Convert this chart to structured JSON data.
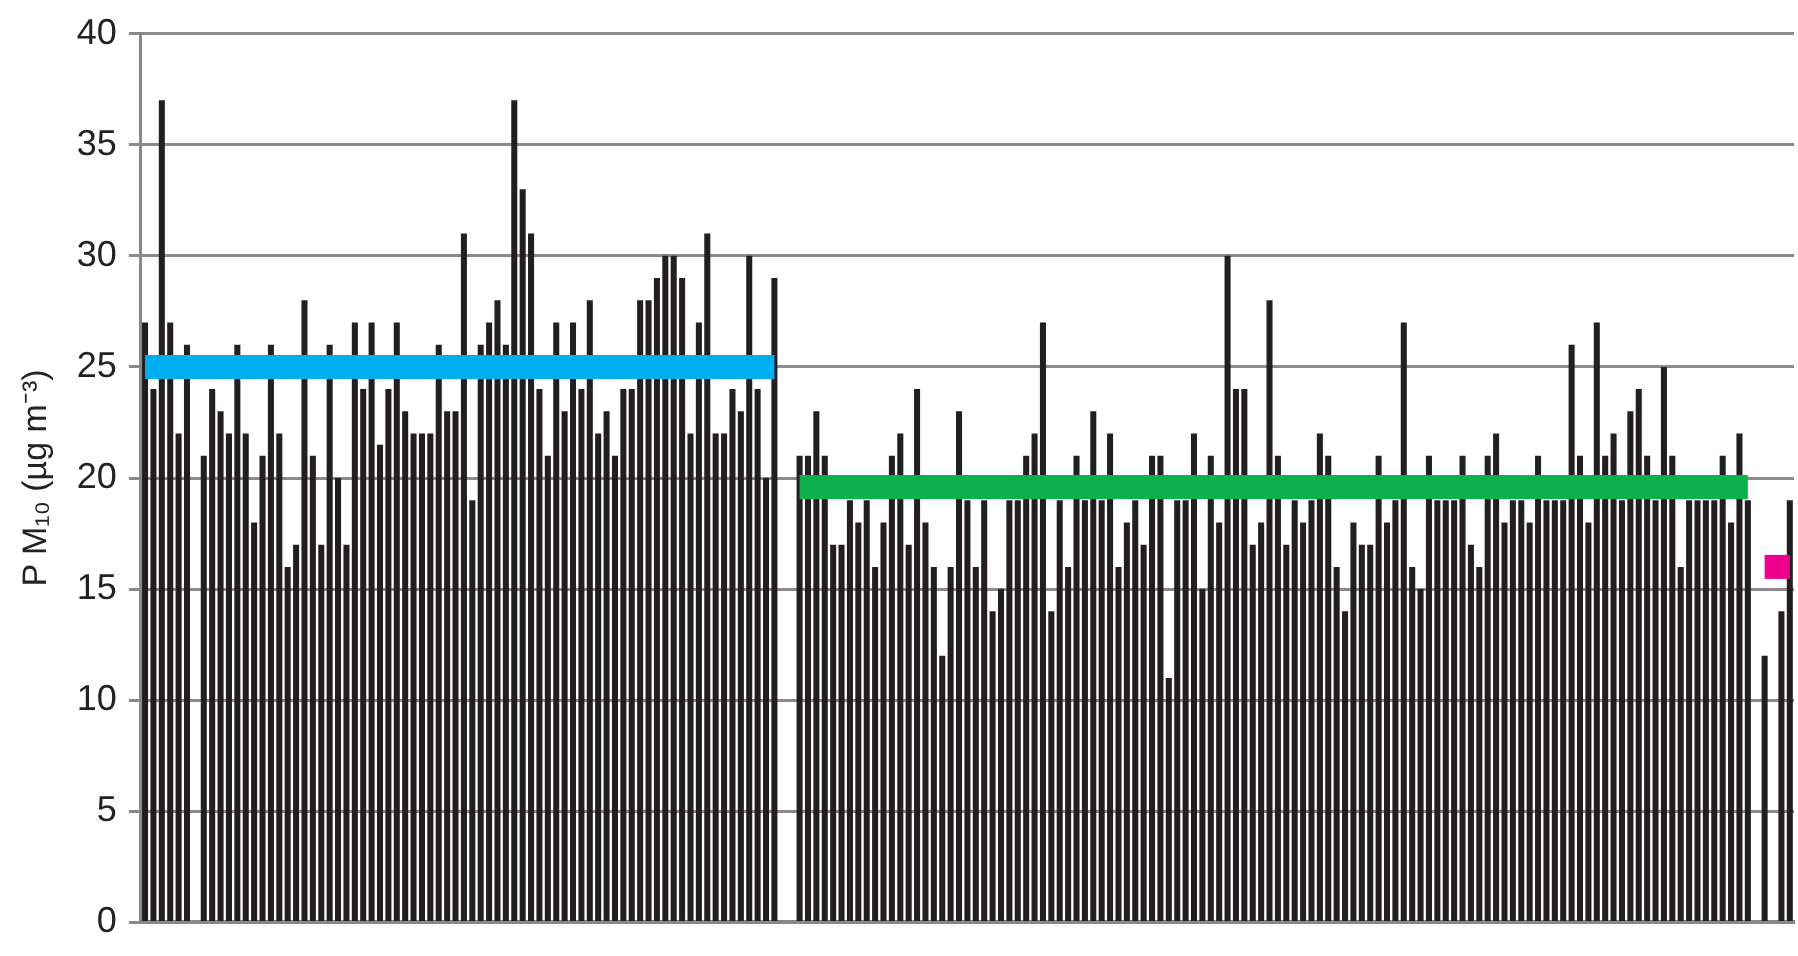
{
  "chart_data": {
    "type": "bar",
    "ylabel": "P M₁₀ (µg m⁻³)",
    "ylim": [
      0,
      40
    ],
    "yticks": [
      0,
      5,
      10,
      15,
      20,
      25,
      30,
      35,
      40
    ],
    "grid": "y",
    "tick_labels": "y",
    "categories": [
      null,
      null,
      null,
      null,
      null,
      null,
      null,
      null,
      null,
      null,
      null,
      null,
      null,
      null,
      null,
      null,
      null,
      null,
      null,
      null,
      null,
      null,
      null,
      null,
      null,
      null,
      null,
      null,
      null,
      null,
      null,
      null,
      null,
      null,
      null,
      null,
      null,
      null,
      null,
      null,
      null,
      null,
      null,
      null,
      null,
      null,
      null,
      null,
      null,
      null,
      null,
      null,
      null,
      null,
      null,
      null,
      null,
      null,
      null,
      null,
      null,
      null,
      null,
      null,
      null,
      null,
      null,
      null,
      null,
      null,
      null,
      null,
      null,
      null,
      null,
      null,
      null,
      null,
      null,
      null,
      null,
      null,
      null,
      null,
      null,
      null,
      null,
      null,
      null,
      null,
      null,
      null,
      null,
      null,
      null,
      null,
      null,
      null,
      null,
      null,
      null,
      null,
      null,
      null,
      null,
      null,
      null,
      null,
      null,
      null,
      null,
      null,
      null,
      null,
      null,
      null,
      null,
      null,
      null,
      null,
      null,
      null,
      null,
      null,
      null,
      null,
      null,
      null,
      null,
      null,
      null,
      null,
      null,
      null,
      null,
      null,
      null,
      null,
      null,
      null,
      null,
      null,
      null,
      null,
      null,
      null,
      null,
      null,
      null,
      null,
      null,
      null,
      null,
      null,
      null,
      null,
      null,
      null,
      null,
      null,
      null,
      null,
      null,
      null,
      null,
      null,
      null,
      null,
      null,
      null,
      null,
      null,
      null,
      null,
      null,
      null,
      null,
      null,
      null,
      null,
      null,
      null,
      null,
      null,
      null,
      null,
      null,
      null,
      null,
      null,
      null,
      null,
      null,
      null,
      null,
      null,
      null
    ],
    "series": [
      {
        "color": "#231f20",
        "values": [
          27,
          24,
          37,
          27,
          22,
          26,
          null,
          21,
          24,
          23,
          22,
          26,
          22,
          18,
          21,
          26,
          22,
          16,
          17,
          28,
          21,
          17,
          26,
          20,
          17,
          27,
          24,
          27,
          21.5,
          24,
          27,
          23,
          22,
          22,
          22,
          26,
          23,
          23,
          31,
          19,
          26,
          27,
          28,
          26,
          37,
          33,
          31,
          24,
          21,
          27,
          23,
          27,
          24,
          28,
          22,
          23,
          21,
          24,
          24,
          28,
          28,
          29,
          30,
          30,
          29,
          22,
          27,
          31,
          22,
          22,
          24,
          23,
          30,
          24,
          20,
          29,
          null,
          null,
          21,
          21,
          23,
          21,
          17,
          17,
          19,
          18,
          19,
          16,
          18,
          21,
          22,
          17,
          24,
          18,
          16,
          12,
          16,
          23,
          19,
          16,
          19,
          14,
          15,
          19,
          19,
          21,
          22,
          27,
          14,
          19,
          16,
          21,
          19,
          23,
          19,
          22,
          16,
          18,
          19,
          17,
          21,
          21,
          11,
          19,
          19,
          22,
          15,
          21,
          18,
          30,
          24,
          24,
          17,
          18,
          28,
          21,
          17,
          19,
          18,
          19,
          22,
          21,
          16,
          14,
          18,
          17,
          17,
          21,
          18,
          19,
          27,
          16,
          15,
          21,
          19,
          19,
          19,
          21,
          17,
          16,
          21,
          22,
          18,
          19,
          19,
          18,
          21,
          19,
          19,
          19,
          26,
          21,
          18,
          27,
          21,
          22,
          19,
          23,
          24,
          21,
          19,
          25,
          21,
          16,
          19,
          19,
          19,
          19,
          21,
          18,
          22,
          19,
          null,
          12,
          null,
          14,
          19
        ]
      },
      {
        "type": "line",
        "color": "#00aeef",
        "values": [
          25,
          25,
          25,
          25,
          25,
          25,
          25,
          25,
          25,
          25,
          25,
          25,
          25,
          25,
          25,
          25,
          25,
          25,
          25,
          25,
          25,
          25,
          25,
          25,
          25,
          25,
          25,
          25,
          25,
          25,
          25,
          25,
          25,
          25,
          25,
          25,
          25,
          25,
          25,
          25,
          25,
          25,
          25,
          25,
          25,
          25,
          25,
          25,
          25,
          25,
          25,
          25,
          25,
          25,
          25,
          25,
          25,
          25,
          25,
          25,
          25,
          25,
          25,
          25,
          25,
          25,
          25,
          25,
          25,
          25,
          25,
          25,
          25,
          25,
          25,
          25,
          null,
          null,
          null,
          null,
          null,
          null,
          null,
          null,
          null,
          null,
          null,
          null,
          null,
          null,
          null,
          null,
          null,
          null,
          null,
          null,
          null,
          null,
          null,
          null,
          null,
          null,
          null,
          null,
          null,
          null,
          null,
          null,
          null,
          null,
          null,
          null,
          null,
          null,
          null,
          null,
          null,
          null,
          null,
          null,
          null,
          null,
          null,
          null,
          null,
          null,
          null,
          null,
          null,
          null,
          null,
          null,
          null,
          null,
          null,
          null,
          null,
          null,
          null,
          null,
          null,
          null,
          null,
          null,
          null,
          null,
          null,
          null,
          null,
          null,
          null,
          null,
          null,
          null,
          null,
          null,
          null,
          null,
          null,
          null,
          null,
          null,
          null,
          null,
          null,
          null,
          null,
          null,
          null,
          null,
          null,
          null,
          null,
          null,
          null,
          null,
          null,
          null,
          null,
          null,
          null,
          null,
          null,
          null,
          null,
          null,
          null,
          null,
          null,
          null,
          null,
          null,
          null,
          null,
          null,
          null,
          null
        ]
      },
      {
        "type": "line",
        "color": "#0db14b",
        "values": [
          null,
          null,
          null,
          null,
          null,
          null,
          null,
          null,
          null,
          null,
          null,
          null,
          null,
          null,
          null,
          null,
          null,
          null,
          null,
          null,
          null,
          null,
          null,
          null,
          null,
          null,
          null,
          null,
          null,
          null,
          null,
          null,
          null,
          null,
          null,
          null,
          null,
          null,
          null,
          null,
          null,
          null,
          null,
          null,
          null,
          null,
          null,
          null,
          null,
          null,
          null,
          null,
          null,
          null,
          null,
          null,
          null,
          null,
          null,
          null,
          null,
          null,
          null,
          null,
          null,
          null,
          null,
          null,
          null,
          null,
          null,
          null,
          null,
          null,
          null,
          null,
          null,
          null,
          19.6,
          19.6,
          19.6,
          19.6,
          19.6,
          19.6,
          19.6,
          19.6,
          19.6,
          19.6,
          19.6,
          19.6,
          19.6,
          19.6,
          19.6,
          19.6,
          19.6,
          19.6,
          19.6,
          19.6,
          19.6,
          19.6,
          19.6,
          19.6,
          19.6,
          19.6,
          19.6,
          19.6,
          19.6,
          19.6,
          19.6,
          19.6,
          19.6,
          19.6,
          19.6,
          19.6,
          19.6,
          19.6,
          19.6,
          19.6,
          19.6,
          19.6,
          19.6,
          19.6,
          19.6,
          19.6,
          19.6,
          19.6,
          19.6,
          19.6,
          19.6,
          19.6,
          19.6,
          19.6,
          19.6,
          19.6,
          19.6,
          19.6,
          19.6,
          19.6,
          19.6,
          19.6,
          19.6,
          19.6,
          19.6,
          19.6,
          19.6,
          19.6,
          19.6,
          19.6,
          19.6,
          19.6,
          19.6,
          19.6,
          19.6,
          19.6,
          19.6,
          19.6,
          19.6,
          19.6,
          19.6,
          19.6,
          19.6,
          19.6,
          19.6,
          19.6,
          19.6,
          19.6,
          19.6,
          19.6,
          19.6,
          19.6,
          19.6,
          19.6,
          19.6,
          19.6,
          19.6,
          19.6,
          19.6,
          19.6,
          19.6,
          19.6,
          19.6,
          19.6,
          19.6,
          19.6,
          19.6,
          19.6,
          19.6,
          19.6,
          19.6,
          19.6,
          19.6,
          19.6,
          null,
          null,
          null,
          null,
          null
        ]
      },
      {
        "type": "line",
        "color": "#ec008c",
        "values": [
          null,
          null,
          null,
          null,
          null,
          null,
          null,
          null,
          null,
          null,
          null,
          null,
          null,
          null,
          null,
          null,
          null,
          null,
          null,
          null,
          null,
          null,
          null,
          null,
          null,
          null,
          null,
          null,
          null,
          null,
          null,
          null,
          null,
          null,
          null,
          null,
          null,
          null,
          null,
          null,
          null,
          null,
          null,
          null,
          null,
          null,
          null,
          null,
          null,
          null,
          null,
          null,
          null,
          null,
          null,
          null,
          null,
          null,
          null,
          null,
          null,
          null,
          null,
          null,
          null,
          null,
          null,
          null,
          null,
          null,
          null,
          null,
          null,
          null,
          null,
          null,
          null,
          null,
          null,
          null,
          null,
          null,
          null,
          null,
          null,
          null,
          null,
          null,
          null,
          null,
          null,
          null,
          null,
          null,
          null,
          null,
          null,
          null,
          null,
          null,
          null,
          null,
          null,
          null,
          null,
          null,
          null,
          null,
          null,
          null,
          null,
          null,
          null,
          null,
          null,
          null,
          null,
          null,
          null,
          null,
          null,
          null,
          null,
          null,
          null,
          null,
          null,
          null,
          null,
          null,
          null,
          null,
          null,
          null,
          null,
          null,
          null,
          null,
          null,
          null,
          null,
          null,
          null,
          null,
          null,
          null,
          null,
          null,
          null,
          null,
          null,
          null,
          null,
          null,
          null,
          null,
          null,
          null,
          null,
          null,
          null,
          null,
          null,
          null,
          null,
          null,
          null,
          null,
          null,
          null,
          null,
          null,
          null,
          null,
          null,
          null,
          null,
          null,
          null,
          null,
          null,
          null,
          null,
          null,
          null,
          null,
          null,
          null,
          null,
          null,
          null,
          null,
          null,
          16,
          16,
          16,
          16
        ]
      }
    ]
  }
}
